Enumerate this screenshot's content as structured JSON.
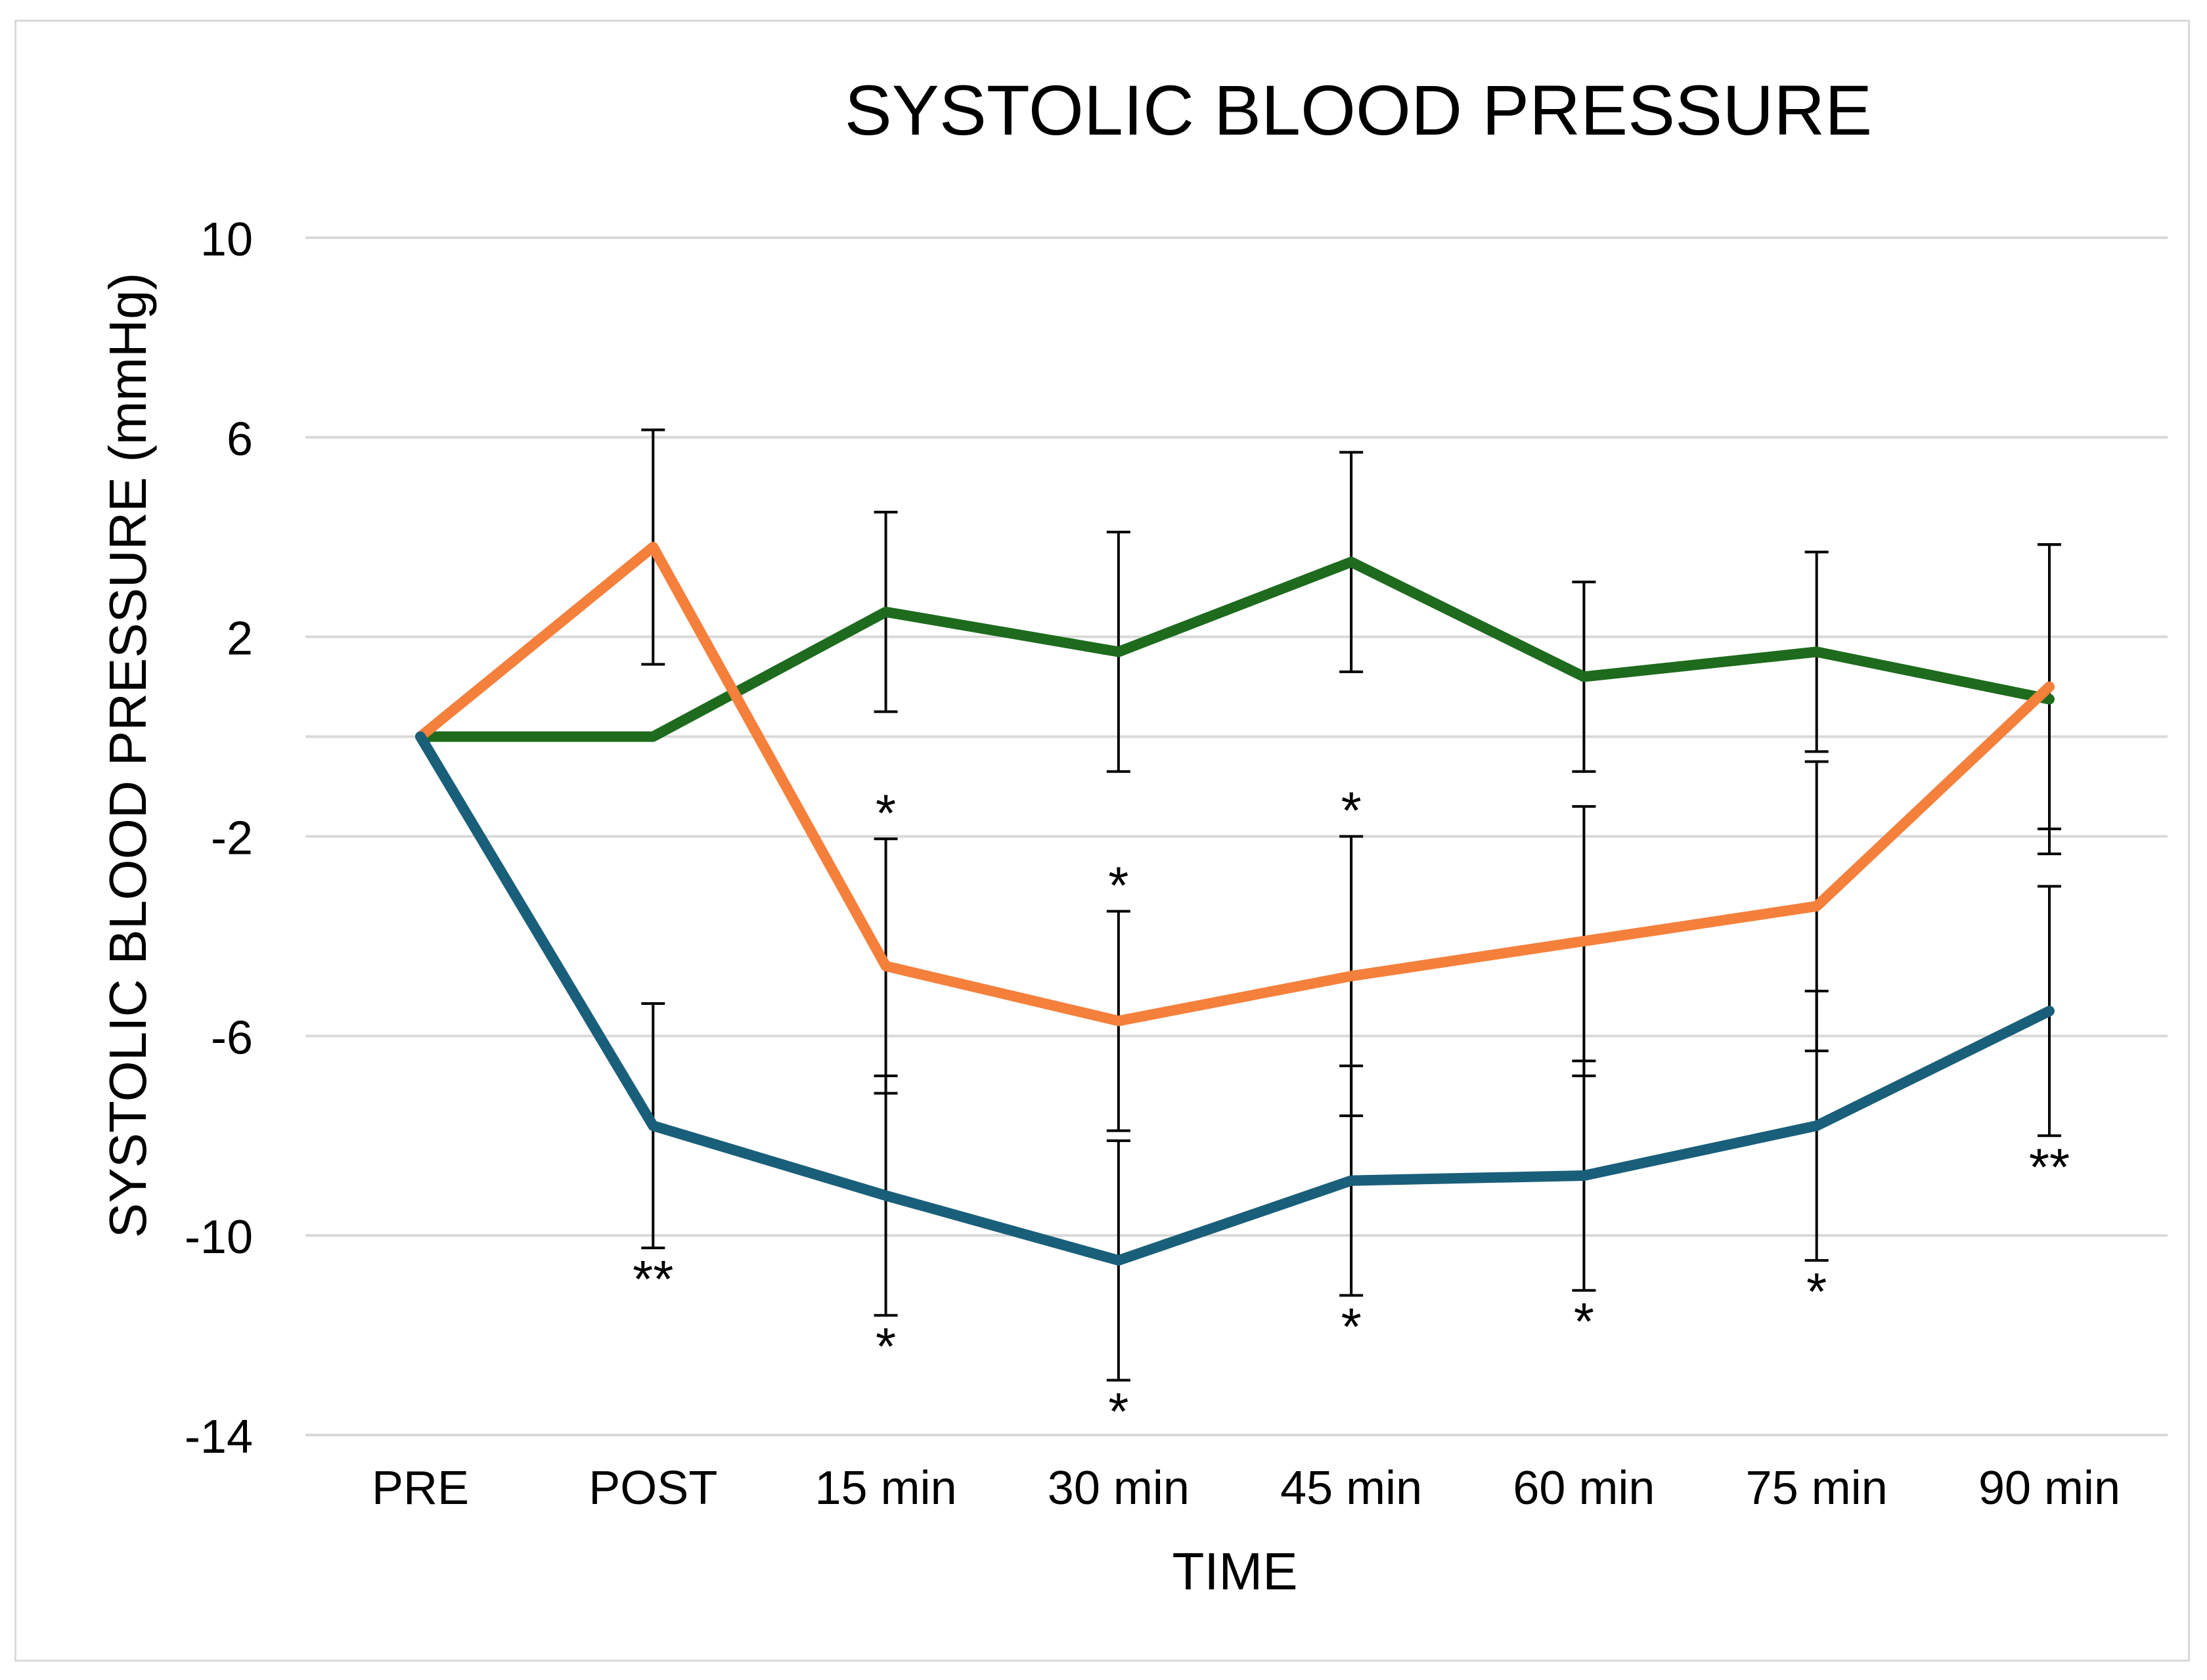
{
  "chart_data": {
    "type": "line",
    "title": "SYSTOLIC BLOOD PRESSURE",
    "xlabel": "TIME",
    "ylabel": "SYSTOLIC BLOOD  PRESSURE (mmHg)",
    "categories": [
      "PRE",
      "POST",
      "15 min",
      "30 min",
      "45 min",
      "60 min",
      "75 min",
      "90 min"
    ],
    "ylim": [
      -14,
      10
    ],
    "yticks": [
      10,
      6,
      2,
      -2,
      -6,
      -10,
      -14
    ],
    "ytick_labels": [
      "10",
      "6",
      "2",
      "-2",
      "-6",
      "-10",
      "-14"
    ],
    "extra_gridlines": [
      0
    ],
    "grid": true,
    "legend": "none",
    "series": [
      {
        "name": "green",
        "color": "#1e6b1e",
        "values": [
          0,
          0,
          2.5,
          1.7,
          3.5,
          1.2,
          1.7,
          0.75
        ],
        "error": [
          0,
          0,
          2.0,
          2.4,
          2.2,
          1.9,
          2.0,
          3.1
        ],
        "annotations": [
          "",
          "",
          "",
          "",
          "",
          "",
          "",
          ""
        ]
      },
      {
        "name": "orange",
        "color": "#f4803c",
        "values": [
          0,
          3.8,
          -4.6,
          -5.7,
          -4.8,
          -4.1,
          -3.4,
          1.0
        ],
        "error": [
          0,
          2.35,
          2.55,
          2.2,
          2.8,
          2.7,
          2.9,
          2.85
        ],
        "annotations": [
          "",
          "",
          "*",
          "*",
          "*",
          "",
          "",
          ""
        ]
      },
      {
        "name": "blue",
        "color": "#1a5f7a",
        "values": [
          0,
          -7.8,
          -9.2,
          -10.5,
          -8.9,
          -8.8,
          -7.8,
          -5.5
        ],
        "error": [
          0,
          2.45,
          2.4,
          2.4,
          2.3,
          2.3,
          2.7,
          2.5
        ],
        "annotations": [
          "",
          "**",
          "*",
          "*",
          "*",
          "*",
          "*",
          "**"
        ]
      }
    ]
  }
}
